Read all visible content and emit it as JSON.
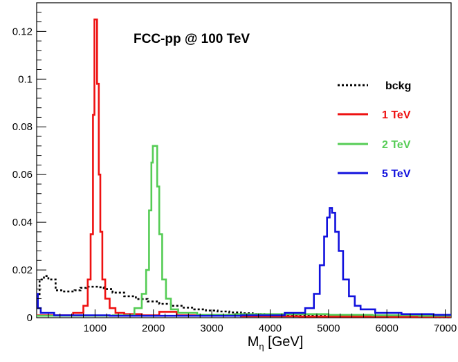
{
  "chart_data": {
    "type": "line",
    "title": "FCC-pp @ 100 TeV",
    "xlabel_main": "M",
    "xlabel_sub": "η",
    "xlabel_unit": " [GeV]",
    "xlim": [
      0,
      7100
    ],
    "ylim": [
      0,
      0.132
    ],
    "grid": false,
    "legend_position": "top-right",
    "x_ticks": [
      {
        "value": 1000,
        "label": "1000"
      },
      {
        "value": 2000,
        "label": "2000"
      },
      {
        "value": 3000,
        "label": "3000"
      },
      {
        "value": 4000,
        "label": "4000"
      },
      {
        "value": 5000,
        "label": "5000"
      },
      {
        "value": 6000,
        "label": "6000"
      },
      {
        "value": 7000,
        "label": "7000"
      }
    ],
    "y_ticks": [
      {
        "value": 0,
        "label": "0"
      },
      {
        "value": 0.02,
        "label": "0.02"
      },
      {
        "value": 0.04,
        "label": "0.04"
      },
      {
        "value": 0.06,
        "label": "0.06"
      },
      {
        "value": 0.08,
        "label": "0.08"
      },
      {
        "value": 0.1,
        "label": "0.1"
      },
      {
        "value": 0.12,
        "label": "0.12"
      }
    ],
    "series": [
      {
        "name": "bckg",
        "color": "#000000",
        "style": "dotted",
        "points": [
          [
            0,
            0.009
          ],
          [
            100,
            0.016
          ],
          [
            150,
            0.0175
          ],
          [
            250,
            0.016
          ],
          [
            400,
            0.0115
          ],
          [
            500,
            0.011
          ],
          [
            600,
            0.011
          ],
          [
            700,
            0.0115
          ],
          [
            800,
            0.0125
          ],
          [
            900,
            0.013
          ],
          [
            1000,
            0.013
          ],
          [
            1100,
            0.0128
          ],
          [
            1200,
            0.012
          ],
          [
            1400,
            0.0105
          ],
          [
            1600,
            0.009
          ],
          [
            1800,
            0.0078
          ],
          [
            2000,
            0.0068
          ],
          [
            2200,
            0.0058
          ],
          [
            2400,
            0.005
          ],
          [
            2600,
            0.0042
          ],
          [
            2800,
            0.0035
          ],
          [
            3000,
            0.003
          ],
          [
            3200,
            0.0026
          ],
          [
            3400,
            0.0022
          ],
          [
            3600,
            0.0019
          ],
          [
            3800,
            0.0016
          ],
          [
            4000,
            0.0014
          ],
          [
            4200,
            0.0012
          ],
          [
            4400,
            0.001
          ],
          [
            4600,
            0.0009
          ],
          [
            4800,
            0.0008
          ],
          [
            5000,
            0.0007
          ],
          [
            5500,
            0.0005
          ],
          [
            6000,
            0.0004
          ],
          [
            6500,
            0.0003
          ],
          [
            7100,
            0.0002
          ]
        ]
      },
      {
        "name": "1 TeV",
        "color": "#ee1111",
        "style": "solid",
        "points": [
          [
            0,
            0.001
          ],
          [
            500,
            0.001
          ],
          [
            750,
            0.002
          ],
          [
            850,
            0.005
          ],
          [
            900,
            0.016
          ],
          [
            950,
            0.035
          ],
          [
            980,
            0.085
          ],
          [
            1000,
            0.125
          ],
          [
            1020,
            0.125
          ],
          [
            1050,
            0.098
          ],
          [
            1080,
            0.06
          ],
          [
            1100,
            0.036
          ],
          [
            1150,
            0.016
          ],
          [
            1200,
            0.008
          ],
          [
            1300,
            0.004
          ],
          [
            1400,
            0.002
          ],
          [
            1600,
            0.0015
          ],
          [
            2000,
            0.001
          ],
          [
            2200,
            0.0025
          ],
          [
            2600,
            0.001
          ],
          [
            3000,
            0.0008
          ],
          [
            4000,
            0.0006
          ],
          [
            5000,
            0.0005
          ],
          [
            7100,
            0.0004
          ]
        ]
      },
      {
        "name": "2 TeV",
        "color": "#55cc55",
        "style": "solid",
        "points": [
          [
            0,
            0.0008
          ],
          [
            1000,
            0.0008
          ],
          [
            1600,
            0.001
          ],
          [
            1750,
            0.004
          ],
          [
            1850,
            0.01
          ],
          [
            1900,
            0.02
          ],
          [
            1950,
            0.045
          ],
          [
            1980,
            0.065
          ],
          [
            2000,
            0.072
          ],
          [
            2050,
            0.072
          ],
          [
            2080,
            0.055
          ],
          [
            2120,
            0.035
          ],
          [
            2180,
            0.016
          ],
          [
            2250,
            0.008
          ],
          [
            2350,
            0.0035
          ],
          [
            2500,
            0.002
          ],
          [
            3000,
            0.0012
          ],
          [
            3800,
            0.0015
          ],
          [
            4500,
            0.0015
          ],
          [
            5500,
            0.0012
          ],
          [
            6000,
            0.001
          ],
          [
            7100,
            0.0008
          ]
        ]
      },
      {
        "name": "5 TeV",
        "color": "#1111dd",
        "style": "solid",
        "points": [
          [
            0,
            0.01
          ],
          [
            40,
            0.004
          ],
          [
            100,
            0.002
          ],
          [
            500,
            0.001
          ],
          [
            2000,
            0.0008
          ],
          [
            3000,
            0.0008
          ],
          [
            4000,
            0.001
          ],
          [
            4500,
            0.002
          ],
          [
            4700,
            0.004
          ],
          [
            4800,
            0.01
          ],
          [
            4900,
            0.022
          ],
          [
            4950,
            0.034
          ],
          [
            5000,
            0.042
          ],
          [
            5040,
            0.046
          ],
          [
            5080,
            0.044
          ],
          [
            5150,
            0.036
          ],
          [
            5200,
            0.028
          ],
          [
            5300,
            0.016
          ],
          [
            5400,
            0.009
          ],
          [
            5500,
            0.005
          ],
          [
            5600,
            0.0035
          ],
          [
            6000,
            0.002
          ],
          [
            6500,
            0.0015
          ],
          [
            7100,
            0.0012
          ]
        ]
      }
    ]
  }
}
